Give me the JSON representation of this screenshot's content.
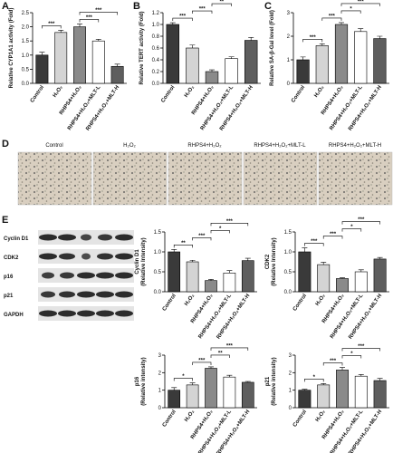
{
  "panel_labels": [
    "A",
    "B",
    "C",
    "D",
    "E"
  ],
  "micrograph_labels": [
    "Control",
    "H₂O₂",
    "RHPS4+H₂O₂",
    "RHPS4+H₂O₂+MLT-L",
    "RHPS4+H₂O₂+MLT-H"
  ],
  "blot_labels": [
    "Cyclin D1",
    "CDK2",
    "p16",
    "p21",
    "GAPDH"
  ],
  "chart_data": [
    {
      "type": "bar",
      "ylabel": [
        "Relative CYP1A1 activity (Fold)"
      ],
      "categories": [
        "Control",
        "H₂O₂",
        "RHPS4+H₂O₂",
        "RHPS4+H₂O₂+MLT-L",
        "RHPS4+H₂O₂+MLT-H"
      ],
      "values": [
        1.0,
        1.8,
        2.0,
        1.5,
        0.6
      ],
      "errors": [
        0.1,
        0.08,
        0.1,
        0.06,
        0.08
      ],
      "colors": [
        "#3a3a3a",
        "#d4d4d4",
        "#8a8a8a",
        "#ffffff",
        "#5e5e5e"
      ],
      "ylim": [
        0,
        2.5
      ],
      "yticks": [
        {
          "value": 0,
          "label": "0.0"
        },
        0.5,
        {
          "value": 1,
          "label": "1.0"
        },
        1.5,
        {
          "value": 2,
          "label": "2.0"
        },
        2.5
      ],
      "comparisons": [
        {
          "pair": [
            0,
            1
          ],
          "label": "***"
        },
        {
          "pair": [
            2,
            3
          ],
          "label": "***"
        },
        {
          "pair": [
            2,
            4
          ],
          "label": "***"
        }
      ]
    },
    {
      "type": "bar",
      "ylabel": [
        "Relative TERT activity (Fold)"
      ],
      "categories": [
        "Control",
        "H₂O₂",
        "RHPS4+H₂O₂",
        "RHPS4+H₂O₂+MLT-L",
        "RHPS4+H₂O₂+MLT-H"
      ],
      "values": [
        1.0,
        0.6,
        0.2,
        0.42,
        0.73
      ],
      "errors": [
        0.03,
        0.05,
        0.03,
        0.03,
        0.05
      ],
      "colors": [
        "#3a3a3a",
        "#d4d4d4",
        "#8a8a8a",
        "#ffffff",
        "#5e5e5e"
      ],
      "ylim": [
        0,
        1.2
      ],
      "yticks": [
        {
          "value": 0,
          "label": "0.0"
        },
        0.2,
        0.4,
        0.6,
        0.8,
        {
          "value": 1,
          "label": "1.0"
        },
        1.2
      ],
      "comparisons": [
        {
          "pair": [
            0,
            1
          ],
          "label": "***"
        },
        {
          "pair": [
            1,
            2
          ],
          "label": "***"
        },
        {
          "pair": [
            2,
            3
          ],
          "label": "**"
        },
        {
          "pair": [
            2,
            4
          ],
          "label": "***"
        }
      ]
    },
    {
      "type": "bar",
      "ylabel": [
        "Relative SA-β-Gal level (Fold)"
      ],
      "categories": [
        "Control",
        "H₂O₂",
        "RHPS4+H₂O₂",
        "RHPS4+H₂O₂+MLT-L",
        "RHPS4+H₂O₂+MLT-H"
      ],
      "values": [
        1.0,
        1.6,
        2.5,
        2.2,
        1.9
      ],
      "errors": [
        0.12,
        0.08,
        0.08,
        0.12,
        0.1
      ],
      "colors": [
        "#3a3a3a",
        "#d4d4d4",
        "#8a8a8a",
        "#ffffff",
        "#5e5e5e"
      ],
      "ylim": [
        0,
        3
      ],
      "yticks": [
        0,
        1,
        2,
        3
      ],
      "comparisons": [
        {
          "pair": [
            0,
            1
          ],
          "label": "***"
        },
        {
          "pair": [
            1,
            2
          ],
          "label": "***"
        },
        {
          "pair": [
            2,
            3
          ],
          "label": "*"
        },
        {
          "pair": [
            2,
            4
          ],
          "label": "***"
        }
      ]
    },
    {
      "type": "bar",
      "ylabel": [
        "Cyclin D1",
        "(Relative Intensity)"
      ],
      "categories": [
        "Control",
        "H₂O₂",
        "RHPS4+H₂O₂",
        "RHPS4+H₂O₂+MLT-L",
        "RHPS4+H₂O₂+MLT-H"
      ],
      "values": [
        1.0,
        0.75,
        0.28,
        0.47,
        0.78
      ],
      "errors": [
        0.06,
        0.04,
        0.03,
        0.06,
        0.06
      ],
      "colors": [
        "#3a3a3a",
        "#d4d4d4",
        "#8a8a8a",
        "#ffffff",
        "#5e5e5e"
      ],
      "ylim": [
        0,
        1.5
      ],
      "yticks": [
        {
          "value": 0,
          "label": "0.0"
        },
        0.5,
        {
          "value": 1,
          "label": "1.0"
        },
        1.5
      ],
      "comparisons": [
        {
          "pair": [
            0,
            1
          ],
          "label": "**"
        },
        {
          "pair": [
            1,
            2
          ],
          "label": "***"
        },
        {
          "pair": [
            2,
            3
          ],
          "label": "*"
        },
        {
          "pair": [
            2,
            4
          ],
          "label": "***"
        }
      ]
    },
    {
      "type": "bar",
      "ylabel": [
        "CDK2",
        "(Relative Intensity)"
      ],
      "categories": [
        "Control",
        "H₂O₂",
        "RHPS4+H₂O₂",
        "RHPS4+H₂O₂+MLT-L",
        "RHPS4+H₂O₂+MLT-H"
      ],
      "values": [
        1.0,
        0.68,
        0.33,
        0.5,
        0.82
      ],
      "errors": [
        0.1,
        0.06,
        0.02,
        0.05,
        0.04
      ],
      "colors": [
        "#3a3a3a",
        "#d4d4d4",
        "#8a8a8a",
        "#ffffff",
        "#5e5e5e"
      ],
      "ylim": [
        0,
        1.5
      ],
      "yticks": [
        {
          "value": 0,
          "label": "0.0"
        },
        0.5,
        {
          "value": 1,
          "label": "1.0"
        },
        1.5
      ],
      "comparisons": [
        {
          "pair": [
            0,
            1
          ],
          "label": "***"
        },
        {
          "pair": [
            1,
            2
          ],
          "label": "***"
        },
        {
          "pair": [
            2,
            3
          ],
          "label": "*"
        },
        {
          "pair": [
            2,
            4
          ],
          "label": "***"
        }
      ]
    },
    {
      "type": "bar",
      "ylabel": [
        "p16",
        "(Relative intensity)"
      ],
      "categories": [
        "Control",
        "H₂O₂",
        "RHPS4+H₂O₂",
        "RHPS4+H₂O₂+MLT-L",
        "RHPS4+H₂O₂+MLT-H"
      ],
      "values": [
        1.0,
        1.3,
        2.25,
        1.75,
        1.45
      ],
      "errors": [
        0.15,
        0.12,
        0.08,
        0.1,
        0.05
      ],
      "colors": [
        "#3a3a3a",
        "#d4d4d4",
        "#8a8a8a",
        "#ffffff",
        "#5e5e5e"
      ],
      "ylim": [
        0,
        3
      ],
      "yticks": [
        0,
        1,
        2,
        3
      ],
      "comparisons": [
        {
          "pair": [
            0,
            1
          ],
          "label": "*"
        },
        {
          "pair": [
            1,
            2
          ],
          "label": "***"
        },
        {
          "pair": [
            2,
            3
          ],
          "label": "**"
        },
        {
          "pair": [
            2,
            4
          ],
          "label": "***"
        }
      ]
    },
    {
      "type": "bar",
      "ylabel": [
        "p21",
        "(Relative intensity)"
      ],
      "categories": [
        "Control",
        "H₂O₂",
        "RHPS4+H₂O₂",
        "RHPS4+H₂O₂+MLT-L",
        "RHPS4+H₂O₂+MLT-H"
      ],
      "values": [
        1.0,
        1.3,
        2.15,
        1.8,
        1.55
      ],
      "errors": [
        0.05,
        0.08,
        0.15,
        0.1,
        0.12
      ],
      "colors": [
        "#3a3a3a",
        "#d4d4d4",
        "#8a8a8a",
        "#ffffff",
        "#5e5e5e"
      ],
      "ylim": [
        0,
        3
      ],
      "yticks": [
        0,
        1,
        2,
        3
      ],
      "comparisons": [
        {
          "pair": [
            0,
            1
          ],
          "label": "*"
        },
        {
          "pair": [
            1,
            2
          ],
          "label": "***"
        },
        {
          "pair": [
            2,
            3
          ],
          "label": "*"
        },
        {
          "pair": [
            2,
            4
          ],
          "label": "***"
        }
      ]
    }
  ]
}
